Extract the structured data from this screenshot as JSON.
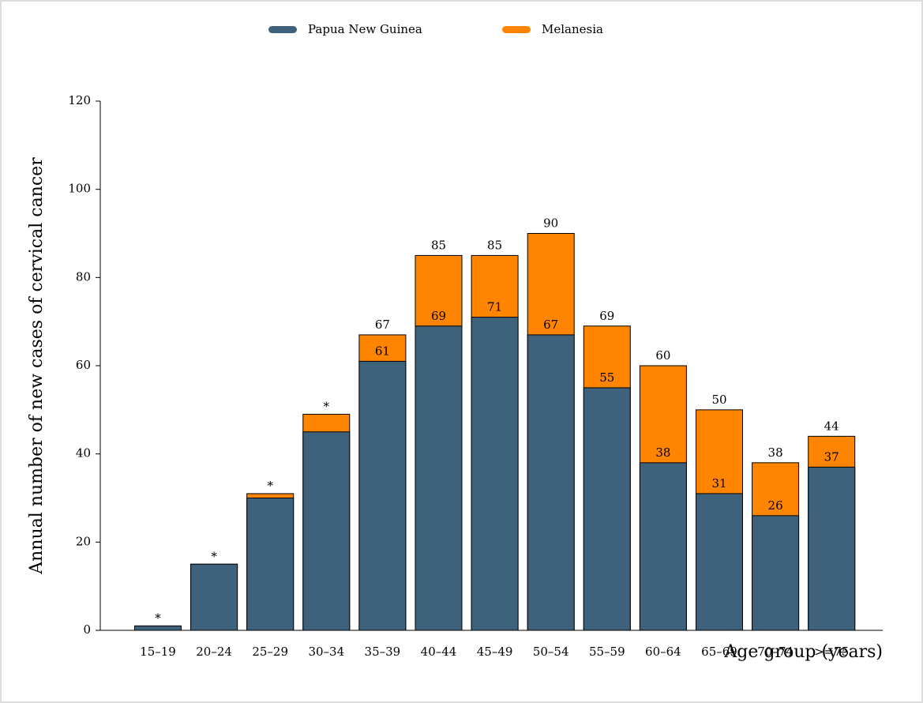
{
  "chart_data": {
    "type": "bar",
    "overlap": true,
    "y_label": "Annual number of new cases of cervical cancer",
    "x_label": "Age group (years)",
    "categories": [
      "15–19",
      "20–24",
      "25–29",
      "30–34",
      "35–39",
      "40–44",
      "45–49",
      "50–54",
      "55–59",
      "60–64",
      "65–69",
      "70–74",
      ">=75"
    ],
    "series": [
      {
        "name": "Melanesia",
        "color": "#ff8400",
        "values": [
          1,
          15,
          31,
          49,
          67,
          85,
          85,
          90,
          69,
          60,
          50,
          38,
          44
        ],
        "value_labels": [
          "*",
          "*",
          "*",
          "*",
          "67",
          "85",
          "85",
          "90",
          "69",
          "60",
          "50",
          "38",
          "44"
        ]
      },
      {
        "name": "Papua New Guinea",
        "color": "#3f627c",
        "values": [
          1,
          15,
          30,
          45,
          61,
          69,
          71,
          67,
          55,
          38,
          31,
          26,
          37
        ],
        "value_labels": [
          null,
          null,
          null,
          null,
          "61",
          "69",
          "71",
          "67",
          "55",
          "38",
          "31",
          "26",
          "37"
        ]
      }
    ],
    "legend_order": [
      1,
      0
    ],
    "ylim": [
      0,
      120
    ],
    "yticks": [
      0,
      20,
      40,
      60,
      80,
      100,
      120
    ]
  }
}
